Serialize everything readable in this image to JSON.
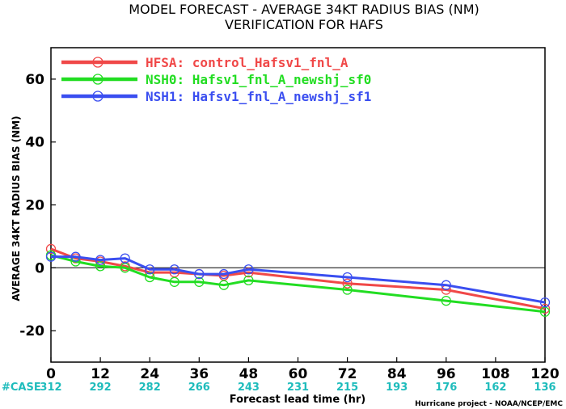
{
  "chart_data": {
    "type": "line",
    "title": "MODEL FORECAST - AVERAGE 34KT RADIUS BIAS (NM)",
    "subtitle": "VERIFICATION FOR HAFS",
    "xlabel": "Forecast lead time (hr)",
    "ylabel": "AVERAGE 34KT RADIUS BIAS (NM)",
    "xlim": [
      0,
      120
    ],
    "ylim": [
      -30,
      70
    ],
    "xticks": [
      0,
      12,
      24,
      36,
      48,
      60,
      72,
      84,
      96,
      108,
      120
    ],
    "yticks": [
      -20,
      0,
      20,
      40,
      60
    ],
    "zero_line": true,
    "legend_position": "top-left",
    "case_label": "#CASE",
    "case_x": [
      0,
      12,
      24,
      36,
      48,
      60,
      72,
      84,
      96,
      108,
      120
    ],
    "cases": [
      "312",
      "292",
      "282",
      "266",
      "243",
      "231",
      "215",
      "193",
      "176",
      "162",
      "136"
    ],
    "credit": "Hurricane project - NOAA/NCEP/EMC",
    "series": [
      {
        "name": "HFSA: control_Hafsv1_fnl_A",
        "color": "#f04848",
        "x": [
          0,
          6,
          12,
          18,
          24,
          30,
          36,
          42,
          48,
          72,
          96,
          120
        ],
        "y": [
          6,
          3,
          2,
          0.5,
          -1.5,
          -1.5,
          -2,
          -2.5,
          -1.5,
          -5,
          -7,
          -13
        ]
      },
      {
        "name": "NSH0: Hafsv1_fnl_A_newshj_sf0",
        "color": "#22dd22",
        "x": [
          0,
          6,
          12,
          18,
          24,
          30,
          36,
          42,
          48,
          72,
          96,
          120
        ],
        "y": [
          4,
          2,
          0.5,
          0,
          -3,
          -4.5,
          -4.5,
          -5.5,
          -4,
          -7,
          -10.5,
          -14
        ]
      },
      {
        "name": "NSH1: Hafsv1_fnl_A_newshj_sf1",
        "color": "#3a4ef0",
        "x": [
          0,
          6,
          12,
          18,
          24,
          30,
          36,
          42,
          48,
          72,
          96,
          120
        ],
        "y": [
          3.5,
          3.5,
          2.5,
          3,
          -0.5,
          -0.5,
          -2,
          -2,
          -0.5,
          -3,
          -5.5,
          -11
        ]
      }
    ]
  }
}
